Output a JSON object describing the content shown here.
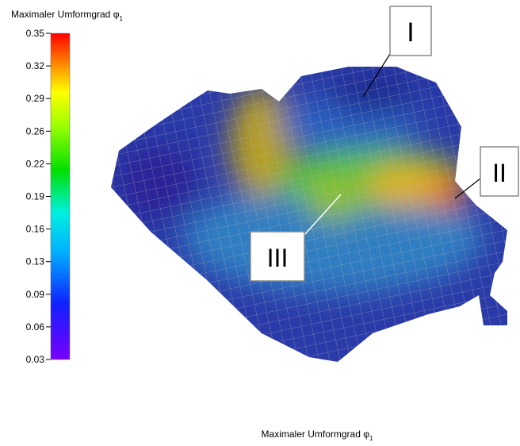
{
  "colorbar": {
    "title": "Maximaler Umformgrad φ",
    "title_subscript": "1",
    "ticks": [
      "0.35",
      "0.32",
      "0.29",
      "0.26",
      "0.22",
      "0.19",
      "0.16",
      "0.13",
      "0.09",
      "0.06",
      "0.03"
    ]
  },
  "labels": [
    "I",
    "II",
    "III"
  ],
  "caption": {
    "text": "Maximaler Umformgrad φ",
    "subscript": "1"
  }
}
